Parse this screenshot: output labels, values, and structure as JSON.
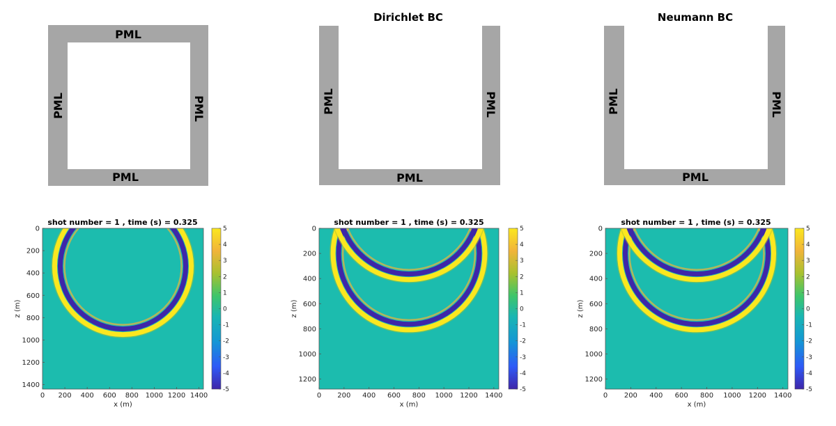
{
  "top_panels": [
    {
      "title": "",
      "labels": {
        "top": "PML",
        "bottom": "PML",
        "left": "PML",
        "right": "PML"
      }
    },
    {
      "title": "Dirichlet BC",
      "labels": {
        "bottom": "PML",
        "left": "PML",
        "right": "PML"
      }
    },
    {
      "title": "Neumann BC",
      "labels": {
        "bottom": "PML",
        "left": "PML",
        "right": "PML"
      }
    }
  ],
  "colors": {
    "pml_gray": "#a6a6a6",
    "colormap": [
      "#3e26a8",
      "#2e5af7",
      "#1498d4",
      "#19b6b3",
      "#3ec56b",
      "#a8c12f",
      "#f1b43a",
      "#fbe71f"
    ],
    "field_background": "#1cbcae"
  },
  "chart_data": [
    {
      "type": "heatmap",
      "title": "shot number  = 1   , time (s) = 0.325",
      "xlabel": "x (m)",
      "ylabel": "z (m)",
      "xlim": [
        0,
        1440
      ],
      "ylim": [
        0,
        1440
      ],
      "x_ticks": [
        "0",
        "200",
        "400",
        "600",
        "800",
        "1000",
        "1200",
        "1400"
      ],
      "y_ticks": [
        "0",
        "200",
        "400",
        "600",
        "800",
        "1000",
        "1200",
        "1400"
      ],
      "colorbar": {
        "min": -5,
        "max": 5,
        "ticks": [
          "5",
          "4",
          "3",
          "2",
          "1",
          "0",
          "-1",
          "-2",
          "-3",
          "-4",
          "-5"
        ]
      },
      "wavefronts": [
        {
          "center_x": 720,
          "center_z": 340,
          "radius": 580
        }
      ]
    },
    {
      "type": "heatmap",
      "title": "shot number  = 1   , time (s) = 0.325",
      "xlabel": "x (m)",
      "ylabel": "z (m)",
      "xlim": [
        0,
        1440
      ],
      "ylim": [
        0,
        1280
      ],
      "x_ticks": [
        "0",
        "200",
        "400",
        "600",
        "800",
        "1000",
        "1200",
        "1400"
      ],
      "y_ticks": [
        "0",
        "200",
        "400",
        "600",
        "800",
        "1000",
        "1200"
      ],
      "colorbar": {
        "min": -5,
        "max": 5,
        "ticks": [
          "5",
          "4",
          "3",
          "2",
          "1",
          "0",
          "-1",
          "-2",
          "-3",
          "-4",
          "-5"
        ]
      },
      "wavefronts": [
        {
          "center_x": 720,
          "center_z": 200,
          "radius": 580
        },
        {
          "center_x": 720,
          "center_z": -200,
          "radius": 580
        }
      ]
    },
    {
      "type": "heatmap",
      "title": "shot number  = 1   , time (s) = 0.325",
      "xlabel": "x (m)",
      "ylabel": "z (m)",
      "xlim": [
        0,
        1440
      ],
      "ylim": [
        0,
        1280
      ],
      "x_ticks": [
        "0",
        "200",
        "400",
        "600",
        "800",
        "1000",
        "1200",
        "1400"
      ],
      "y_ticks": [
        "0",
        "200",
        "400",
        "600",
        "800",
        "1000",
        "1200"
      ],
      "colorbar": {
        "min": -5,
        "max": 5,
        "ticks": [
          "5",
          "4",
          "3",
          "2",
          "1",
          "0",
          "-1",
          "-2",
          "-3",
          "-4",
          "-5"
        ]
      },
      "wavefronts": [
        {
          "center_x": 720,
          "center_z": 200,
          "radius": 580
        },
        {
          "center_x": 720,
          "center_z": -200,
          "radius": 580
        }
      ]
    }
  ]
}
